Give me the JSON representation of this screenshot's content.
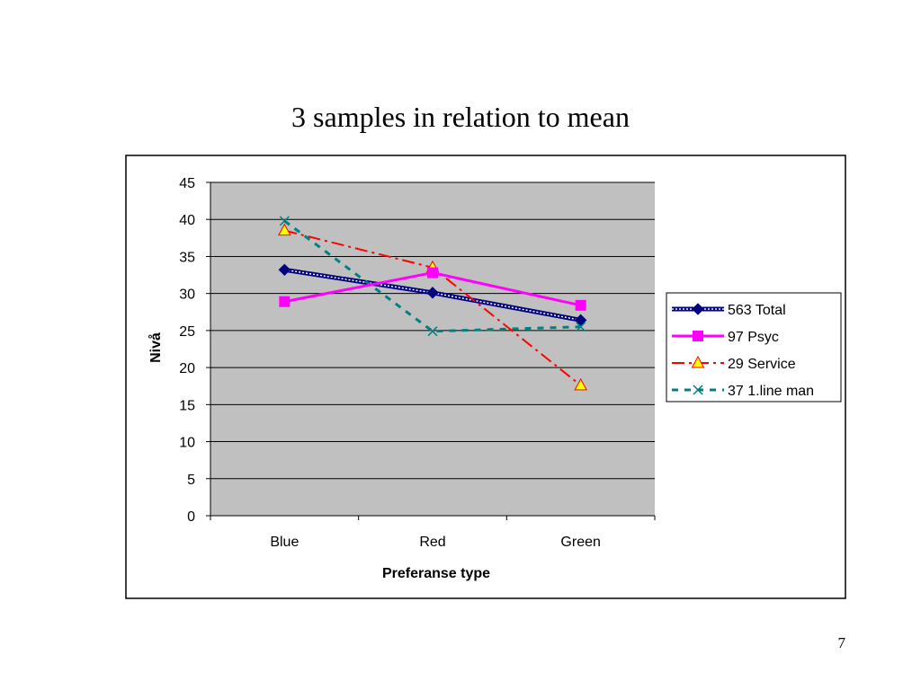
{
  "slide": {
    "title": "3 samples in relation to mean",
    "page_number": "7"
  },
  "chart_data": {
    "type": "line",
    "title": "",
    "xlabel": "Preferanse type",
    "ylabel": "Nivå",
    "categories": [
      "Blue",
      "Red",
      "Green"
    ],
    "ylim": [
      0,
      45
    ],
    "yticks": [
      0,
      5,
      10,
      15,
      20,
      25,
      30,
      35,
      40,
      45
    ],
    "grid": true,
    "plot_background": "#c0c0c0",
    "legend_position": "right",
    "series": [
      {
        "name": "563 Total",
        "values": [
          33.2,
          30.1,
          26.4
        ],
        "color": "#000080",
        "marker": "diamond",
        "line": "textured"
      },
      {
        "name": "97 Psyc",
        "values": [
          28.9,
          32.8,
          28.4
        ],
        "color": "#ff00ff",
        "marker": "square",
        "line": "solid"
      },
      {
        "name": "29 Service",
        "values": [
          38.5,
          33.5,
          17.6
        ],
        "color": "#ff0000",
        "marker": "triangle",
        "marker_fill": "#ffff00",
        "line": "dash-dot"
      },
      {
        "name": "37 1.line man",
        "values": [
          39.8,
          24.9,
          25.5
        ],
        "color": "#008080",
        "marker": "x",
        "line": "dashed"
      }
    ]
  }
}
